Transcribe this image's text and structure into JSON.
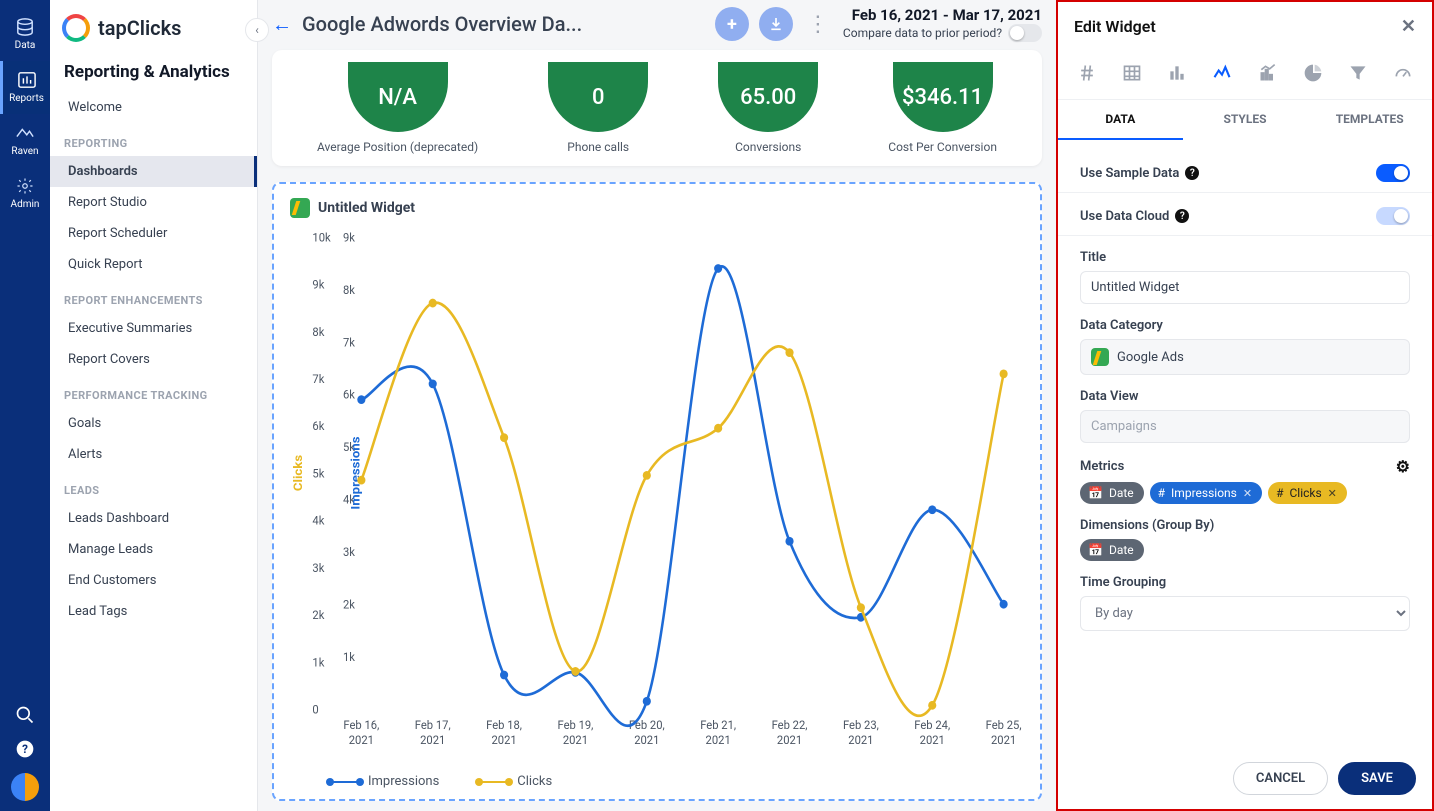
{
  "rail": {
    "items": [
      {
        "label": "Data"
      },
      {
        "label": "Reports"
      },
      {
        "label": "Raven"
      },
      {
        "label": "Admin"
      }
    ]
  },
  "brand": {
    "name": "tapClicks"
  },
  "sidebar": {
    "heading": "Reporting & Analytics",
    "welcome": "Welcome",
    "groups": [
      {
        "title": "REPORTING",
        "items": [
          "Dashboards",
          "Report Studio",
          "Report Scheduler",
          "Quick Report"
        ]
      },
      {
        "title": "REPORT ENHANCEMENTS",
        "items": [
          "Executive Summaries",
          "Report Covers"
        ]
      },
      {
        "title": "PERFORMANCE TRACKING",
        "items": [
          "Goals",
          "Alerts"
        ]
      },
      {
        "title": "LEADS",
        "items": [
          "Leads Dashboard",
          "Manage Leads",
          "End Customers",
          "Lead Tags"
        ]
      }
    ]
  },
  "header": {
    "title": "Google Adwords Overview Da...",
    "date_range": "Feb 16, 2021 - Mar 17, 2021",
    "compare_label": "Compare data to prior period?"
  },
  "kpis": [
    {
      "value": "N/A",
      "label": "Average Position (deprecated)"
    },
    {
      "value": "0",
      "label": "Phone calls"
    },
    {
      "value": "65.00",
      "label": "Conversions"
    },
    {
      "value": "$346.11",
      "label": "Cost Per Conversion"
    }
  ],
  "widget": {
    "title": "Untitled Widget",
    "chart": {
      "type": "line",
      "x_labels": [
        "Feb 16, 2021",
        "Feb 17, 2021",
        "Feb 18, 2021",
        "Feb 19, 2021",
        "Feb 20, 2021",
        "Feb 21, 2021",
        "Feb 22, 2021",
        "Feb 23, 2021",
        "Feb 24, 2021",
        "Feb 25, 2021"
      ],
      "y_left": {
        "label": "Clicks",
        "color": "#e8b923",
        "ticks": [
          0,
          "1k",
          "2k",
          "3k",
          "4k",
          "5k",
          "6k",
          "7k",
          "8k",
          "9k",
          "10k"
        ],
        "min": 0,
        "max": 10
      },
      "y_right": {
        "label": "Impressions",
        "color": "#1e6bd6",
        "ticks": [
          "1k",
          "2k",
          "3k",
          "4k",
          "5k",
          "6k",
          "7k",
          "8k",
          "9k"
        ],
        "min": 0,
        "max": 9
      },
      "series": [
        {
          "name": "Impressions",
          "color": "#1e6bd6",
          "axis": "right",
          "values": [
            5.9,
            6.2,
            0.65,
            0.7,
            0.15,
            8.4,
            3.2,
            1.75,
            3.8,
            2.0
          ]
        },
        {
          "name": "Clicks",
          "color": "#e8b923",
          "axis": "left",
          "values": [
            4.85,
            8.6,
            5.75,
            0.8,
            4.95,
            5.95,
            7.55,
            2.15,
            0.08,
            7.1
          ]
        }
      ],
      "background": "#ffffff",
      "label_fontsize": 11
    },
    "legend": [
      {
        "label": "Impressions"
      },
      {
        "label": "Clicks"
      }
    ]
  },
  "panel": {
    "title": "Edit Widget",
    "type_icons": [
      "hash",
      "table",
      "bar",
      "line",
      "trend",
      "pie",
      "funnel",
      "gauge"
    ],
    "tabs": [
      "DATA",
      "STYLES",
      "TEMPLATES"
    ],
    "sample_label": "Use Sample Data",
    "cloud_label": "Use Data Cloud",
    "title_label": "Title",
    "title_value": "Untitled Widget",
    "category_label": "Data Category",
    "category_value": "Google Ads",
    "view_label": "Data View",
    "view_value": "Campaigns",
    "metrics_label": "Metrics",
    "metrics": [
      {
        "icon": "cal",
        "text": "Date",
        "cls": "chip-gray"
      },
      {
        "icon": "hash",
        "text": "Impressions",
        "cls": "chip-blue",
        "x": true
      },
      {
        "icon": "hash",
        "text": "Clicks",
        "cls": "chip-yellow",
        "x": true
      }
    ],
    "dim_label": "Dimensions (Group By)",
    "dims": [
      {
        "icon": "cal",
        "text": "Date",
        "cls": "chip-gray"
      }
    ],
    "tg_label": "Time Grouping",
    "tg_value": "By day",
    "cancel": "CANCEL",
    "save": "SAVE"
  }
}
